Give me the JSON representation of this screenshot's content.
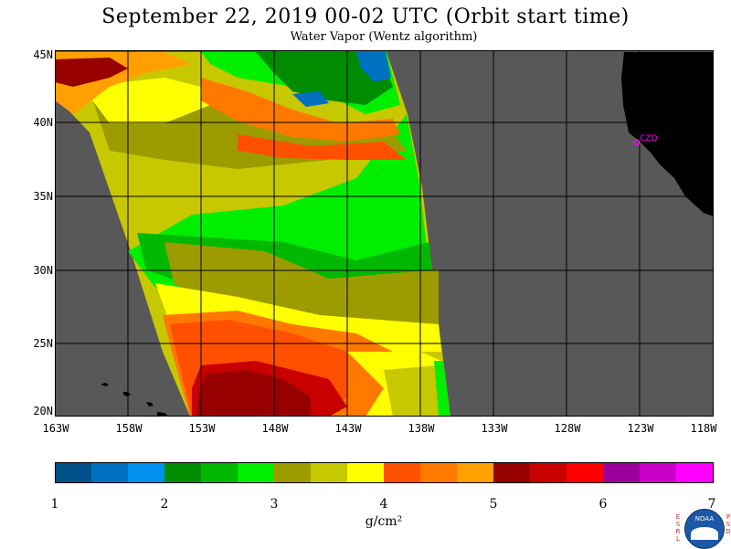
{
  "title": "September 22, 2019  00-02 UTC  (Orbit start time)",
  "subtitle": "Water Vapor (Wentz algorithm)",
  "map": {
    "latitudes": [
      "45N",
      "40N",
      "35N",
      "30N",
      "25N",
      "20N"
    ],
    "longitudes": [
      "163W",
      "158W",
      "153W",
      "148W",
      "143W",
      "138W",
      "133W",
      "128W",
      "123W",
      "118W"
    ],
    "station_label": "CZD",
    "colors": {
      "ocean": "#585858",
      "land": "#000000",
      "grid": "#000000",
      "station": "#ff00ff"
    }
  },
  "colorbar": {
    "tick_labels": [
      "1",
      "2",
      "3",
      "4",
      "5",
      "6",
      "7"
    ],
    "unit": "g/cm²",
    "colors": [
      "#00508a",
      "#0070c0",
      "#0090f0",
      "#008c00",
      "#00b800",
      "#00ee00",
      "#9c9c00",
      "#c8c800",
      "#ffff00",
      "#ff5000",
      "#ff7800",
      "#ffa000",
      "#960000",
      "#c80000",
      "#ff0000",
      "#9c009c",
      "#c800c8",
      "#ff00ff"
    ]
  },
  "logo": {
    "left_letters": [
      "E",
      "S",
      "R",
      "L"
    ],
    "right_letters": [
      "P",
      "S",
      "D"
    ],
    "name": "NOAA"
  }
}
